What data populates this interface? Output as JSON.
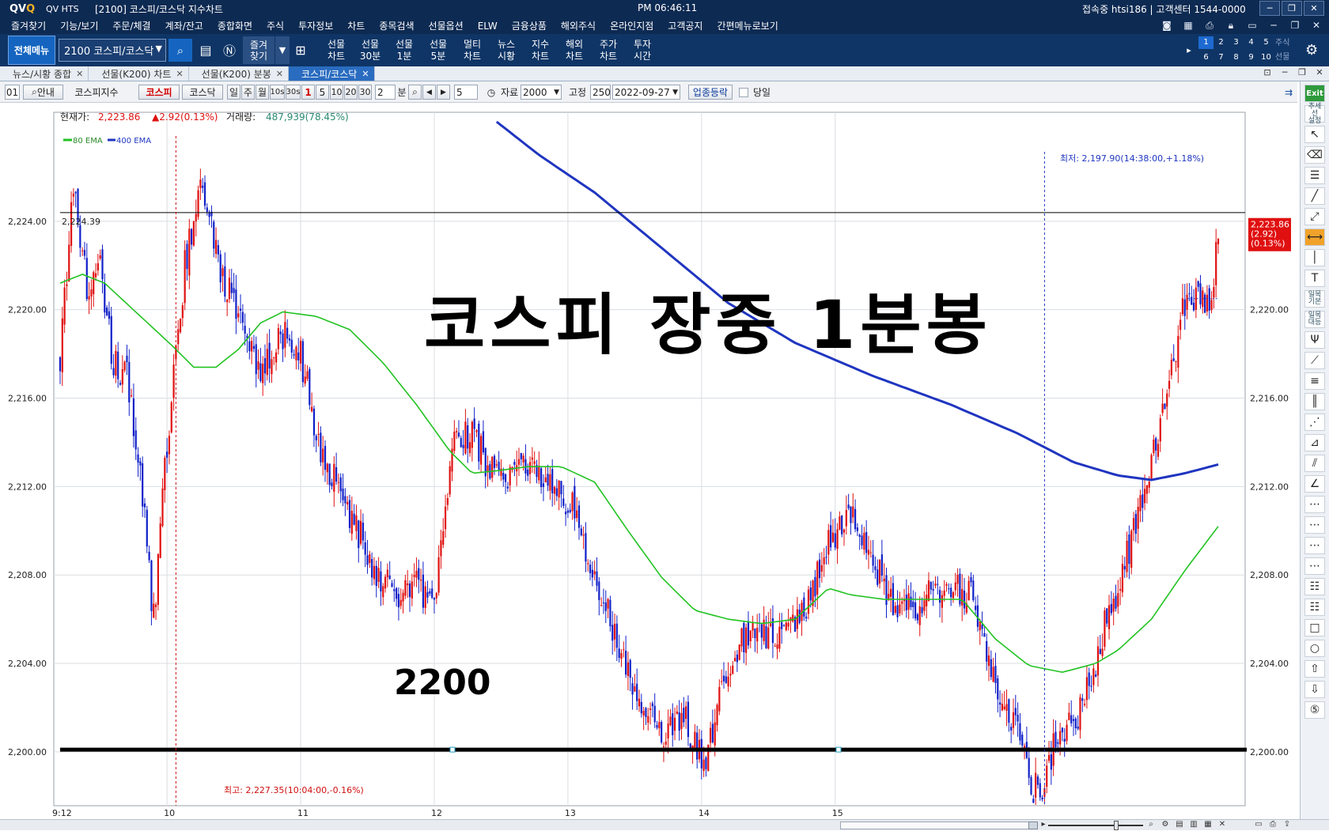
{
  "titlebar": {
    "logo": "QV",
    "app": "QV HTS",
    "title": "[2100] 코스피/코스닥 지수차트",
    "clock": "PM 06:46:11",
    "connection": "접속중 htsi186 | 고객센터 1544-0000",
    "btn_help": "?",
    "btn_min": "─",
    "btn_max": "❐",
    "btn_close": "✕"
  },
  "menubar": {
    "items": [
      "즐겨찾기",
      "기능/보기",
      "주문/체결",
      "계좌/잔고",
      "종합화면",
      "주식",
      "투자정보",
      "차트",
      "종목검색",
      "선물옵션",
      "ELW",
      "금융상품",
      "해외주식",
      "온라인지점",
      "고객공지",
      "간편메뉴로보기"
    ]
  },
  "toolbar": {
    "all_menu": "전체메뉴",
    "code_value": "2100 코스피/코스닥",
    "favorites": "즐겨\n찾기",
    "quick": [
      {
        "label": "선물\n차트"
      },
      {
        "label": "선물\n30분"
      },
      {
        "label": "선물\n1분"
      },
      {
        "label": "선물\n5분"
      },
      {
        "label": "멀티\n차트"
      },
      {
        "label": "뉴스\n시황"
      },
      {
        "label": "지수\n차트"
      },
      {
        "label": "해외\n차트"
      },
      {
        "label": "주가\n차트"
      },
      {
        "label": "투자\n시간"
      }
    ],
    "numbers": [
      "1",
      "2",
      "3",
      "4",
      "5",
      "6",
      "7",
      "8",
      "9",
      "10"
    ],
    "side": [
      "주식",
      "선물"
    ]
  },
  "tabs": [
    {
      "label": "뉴스/시황 종합"
    },
    {
      "label": "선물(K200) 차트"
    },
    {
      "label": "선물(K200) 분봉"
    },
    {
      "label": "코스피/코스닥",
      "active": true
    }
  ],
  "controls": {
    "screen_no": "01",
    "guide": "안내",
    "index_label": "코스피지수",
    "kospi": "코스피",
    "kosdaq": "코스닥",
    "periods": [
      "일",
      "주",
      "월",
      "10s",
      "30s",
      "1",
      "5",
      "10",
      "20",
      "30"
    ],
    "custom_value": "2",
    "unit": "분",
    "count_value": "5",
    "data_label": "자료",
    "data_value": "2000",
    "fixed_label": "고정",
    "fixed_value": "250",
    "date_value": "2022-09-27",
    "sector_btn": "업종등락",
    "today_label": "당일"
  },
  "chart_info": {
    "price_label": "현재가:",
    "price": "2,223.86",
    "change": "▲2.92(0.13%)",
    "volume_label": "거래량:",
    "volume": "487,939(78.45%)",
    "legend": [
      {
        "name": "80 EMA",
        "color": "#22c322"
      },
      {
        "name": "400 EMA",
        "color": "#1f35c0"
      }
    ],
    "hline_value_label": "2,224.39",
    "low_annotation": "최저: 2,197.90(14:38:00,+1.18%)",
    "high_annotation": "최고: 2,227.35(10:04:00,-0.16%)",
    "big_title": "코스피 장중 1분봉",
    "level_label": "2200",
    "last_price_tag": [
      "2,223.86",
      "(2.92)",
      "(0.13%)"
    ]
  },
  "chart_data": {
    "type": "candlestick",
    "title": "코스피 장중 1분봉",
    "x_ticks": [
      "9:12",
      "10",
      "11",
      "12",
      "13",
      "14",
      "15"
    ],
    "y_ticks": [
      "2,200.00",
      "2,204.00",
      "2,208.00",
      "2,212.00",
      "2,216.00",
      "2,220.00",
      "2,224.00"
    ],
    "ylim": [
      2197.6,
      2228.5
    ],
    "up_color": "#e01010",
    "down_color": "#1020c8",
    "series": [
      {
        "name": "80 EMA",
        "color": "#22c322",
        "points": [
          [
            0,
            2221.2
          ],
          [
            10,
            2221.6
          ],
          [
            20,
            2221.2
          ],
          [
            35,
            2219.8
          ],
          [
            50,
            2218.4
          ],
          [
            60,
            2217.4
          ],
          [
            70,
            2217.4
          ],
          [
            80,
            2218.2
          ],
          [
            90,
            2219.4
          ],
          [
            100,
            2219.9
          ],
          [
            115,
            2219.7
          ],
          [
            130,
            2219.1
          ],
          [
            145,
            2217.6
          ],
          [
            160,
            2215.7
          ],
          [
            175,
            2213.6
          ],
          [
            185,
            2212.6
          ],
          [
            195,
            2212.7
          ],
          [
            210,
            2212.9
          ],
          [
            225,
            2212.9
          ],
          [
            240,
            2212.2
          ],
          [
            255,
            2210.0
          ],
          [
            270,
            2207.9
          ],
          [
            285,
            2206.4
          ],
          [
            300,
            2206.0
          ],
          [
            315,
            2205.8
          ],
          [
            330,
            2206.0
          ],
          [
            345,
            2207.4
          ],
          [
            355,
            2207.1
          ],
          [
            370,
            2206.9
          ],
          [
            385,
            2206.9
          ],
          [
            405,
            2206.9
          ],
          [
            420,
            2205.1
          ],
          [
            435,
            2203.9
          ],
          [
            450,
            2203.6
          ],
          [
            465,
            2204.0
          ],
          [
            475,
            2204.6
          ],
          [
            490,
            2206.0
          ],
          [
            505,
            2208.2
          ],
          [
            520,
            2210.2
          ]
        ]
      },
      {
        "name": "400 EMA",
        "color": "#1f35c0",
        "points": [
          [
            196,
            2228.5
          ],
          [
            215,
            2227.0
          ],
          [
            240,
            2225.3
          ],
          [
            270,
            2222.8
          ],
          [
            300,
            2220.3
          ],
          [
            330,
            2218.5
          ],
          [
            365,
            2217.0
          ],
          [
            400,
            2215.7
          ],
          [
            430,
            2214.4
          ],
          [
            455,
            2213.1
          ],
          [
            475,
            2212.5
          ],
          [
            490,
            2212.3
          ],
          [
            505,
            2212.6
          ],
          [
            520,
            2213.0
          ]
        ]
      }
    ],
    "bars": 521,
    "last": 2223.86
  }
}
